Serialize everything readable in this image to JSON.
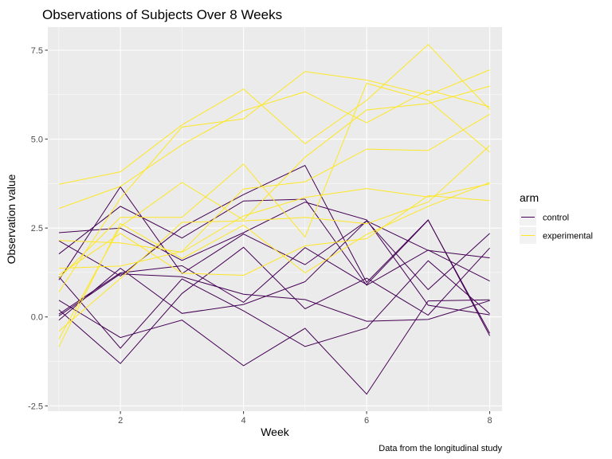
{
  "chart_data": {
    "type": "line",
    "title": "Observations of Subjects Over 8 Weeks",
    "xlabel": "Week",
    "ylabel": "Observation value",
    "caption": "Data from the longitudinal study",
    "xlim": [
      0.82,
      8.2
    ],
    "ylim": [
      -2.65,
      8.15
    ],
    "x_ticks": [
      2,
      4,
      6,
      8
    ],
    "y_ticks": [
      -2.5,
      0.0,
      2.5,
      5.0,
      7.5
    ],
    "y_tick_labels": [
      "-2.5",
      "0.0",
      "2.5",
      "5.0",
      "7.5"
    ],
    "x": [
      1,
      2,
      3,
      4,
      5,
      6,
      7,
      8
    ],
    "grid": true,
    "legend": {
      "title": "arm",
      "position": "right",
      "entries": [
        {
          "label": "control",
          "color": "#440154"
        },
        {
          "label": "experimental",
          "color": "#fde725"
        }
      ]
    },
    "series": [
      {
        "group": "control",
        "values": [
          0.2,
          -1.31,
          0.66,
          1.96,
          0.23,
          1.09,
          0.05,
          1.94
        ]
      },
      {
        "group": "control",
        "values": [
          1.13,
          -0.88,
          1.07,
          0.17,
          -0.83,
          -0.31,
          1.58,
          0.09
        ]
      },
      {
        "group": "control",
        "values": [
          1.77,
          3.11,
          2.22,
          3.26,
          3.31,
          0.89,
          1.88,
          1.01
        ]
      },
      {
        "group": "control",
        "values": [
          1.04,
          3.66,
          1.22,
          2.33,
          1.47,
          2.7,
          1.87,
          1.66
        ]
      },
      {
        "group": "control",
        "values": [
          0.47,
          -0.58,
          -0.09,
          -1.37,
          -0.32,
          -2.17,
          0.45,
          0.48
        ]
      },
      {
        "group": "control",
        "values": [
          2.37,
          2.5,
          1.59,
          2.37,
          3.23,
          2.73,
          0.33,
          0.06
        ]
      },
      {
        "group": "control",
        "values": [
          0.03,
          1.21,
          1.13,
          0.64,
          0.49,
          -0.12,
          -0.07,
          0.46
        ]
      },
      {
        "group": "control",
        "values": [
          -0.09,
          1.37,
          0.1,
          0.35,
          0.99,
          2.7,
          0.77,
          2.35
        ]
      },
      {
        "group": "control",
        "values": [
          0.08,
          1.24,
          1.44,
          0.41,
          1.95,
          0.91,
          2.72,
          -0.46
        ]
      },
      {
        "group": "control",
        "values": [
          2.14,
          1.15,
          2.52,
          3.44,
          4.26,
          0.97,
          2.73,
          -0.53
        ]
      },
      {
        "group": "experimental",
        "values": [
          3.05,
          3.67,
          4.84,
          5.8,
          6.33,
          5.46,
          6.38,
          5.91
        ]
      },
      {
        "group": "experimental",
        "values": [
          -0.84,
          2.63,
          1.64,
          2.58,
          1.24,
          2.32,
          3.11,
          3.78
        ]
      },
      {
        "group": "experimental",
        "values": [
          2.15,
          2.08,
          1.82,
          2.84,
          3.36,
          3.61,
          3.37,
          3.74
        ]
      },
      {
        "group": "experimental",
        "values": [
          -0.62,
          2.54,
          3.78,
          2.73,
          4.49,
          5.82,
          6.0,
          6.49
        ]
      },
      {
        "group": "experimental",
        "values": [
          0.7,
          3.33,
          5.34,
          5.57,
          6.9,
          6.66,
          6.24,
          6.95
        ]
      },
      {
        "group": "experimental",
        "values": [
          3.73,
          4.08,
          5.4,
          6.41,
          4.87,
          6.09,
          7.66,
          5.83
        ]
      },
      {
        "group": "experimental",
        "values": [
          1.18,
          2.35,
          1.23,
          1.17,
          2.0,
          2.2,
          3.41,
          3.27
        ]
      },
      {
        "group": "experimental",
        "values": [
          1.37,
          1.43,
          1.84,
          3.6,
          3.8,
          4.72,
          4.68,
          5.7
        ]
      },
      {
        "group": "experimental",
        "values": [
          -0.4,
          1.08,
          2.66,
          2.7,
          2.8,
          2.62,
          3.23,
          4.82
        ]
      },
      {
        "group": "experimental",
        "values": [
          1.09,
          2.8,
          2.8,
          4.3,
          2.25,
          6.57,
          6.09,
          4.64
        ]
      }
    ]
  }
}
